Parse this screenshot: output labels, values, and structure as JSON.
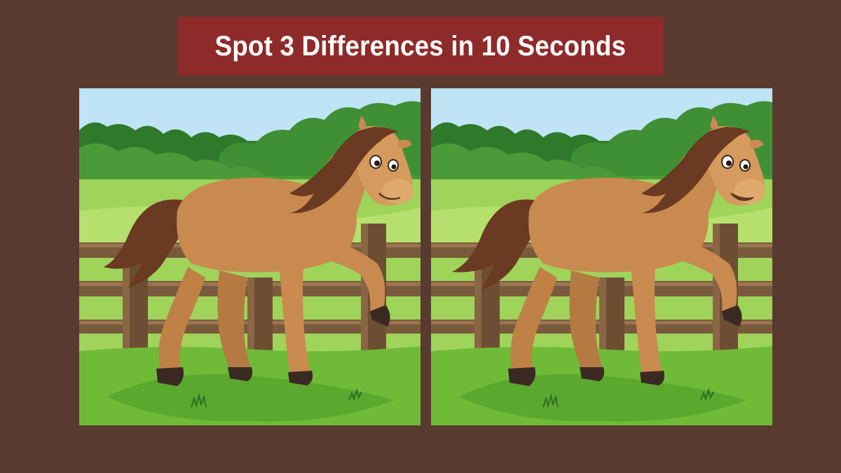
{
  "title": "Spot 3 Differences in 10 Seconds",
  "colors": {
    "background": "#583b2e",
    "banner": "#8e2a2a",
    "sky": "#bfe4f4",
    "trees": "#3f8a33",
    "grass": "#7cc33c",
    "horse_body": "#c98a4f",
    "mane": "#6a3a22",
    "fence": "#7a5a3c"
  },
  "panels": [
    {
      "side": "left",
      "scene": "horse-at-fence",
      "differences": []
    },
    {
      "side": "right",
      "scene": "horse-at-fence",
      "differences": [
        "tail-shape",
        "mouth-open",
        "fence-post-shorter"
      ]
    }
  ]
}
